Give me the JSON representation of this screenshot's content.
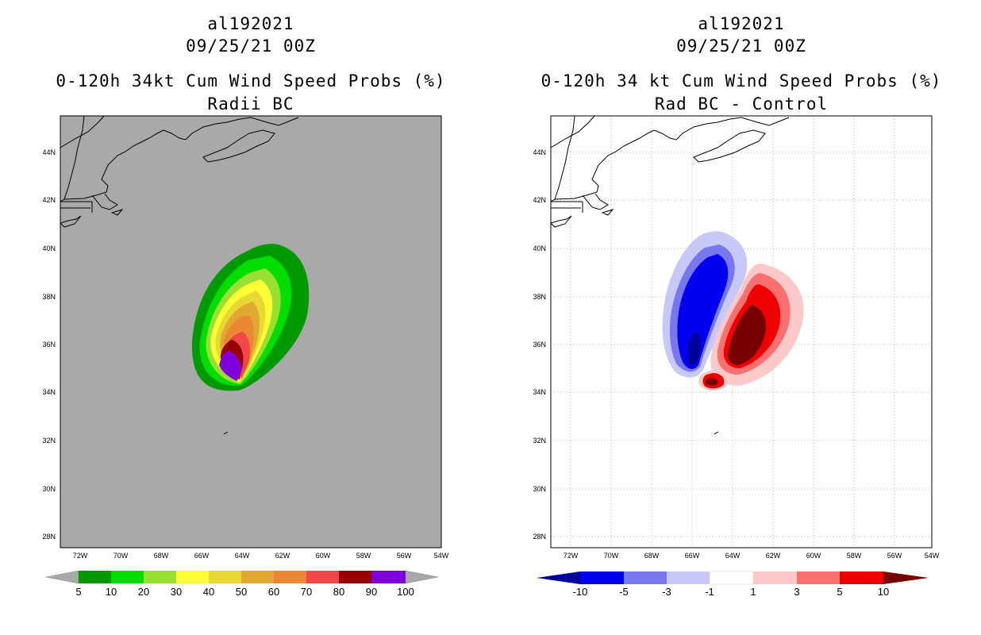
{
  "left": {
    "id": "al192021",
    "datetime": "09/25/21 00Z",
    "title": "0-120h 34kt Cum Wind Speed Probs (%)",
    "subtitle": "Radii BC",
    "background_color": "#a9a9a9",
    "colorbar": {
      "labels": [
        "5",
        "10",
        "20",
        "30",
        "40",
        "50",
        "60",
        "70",
        "80",
        "90",
        "100"
      ],
      "colors": [
        "#009900",
        "#00dd00",
        "#99e033",
        "#ffff33",
        "#e8d833",
        "#e0a833",
        "#ec8833",
        "#f04848",
        "#990000",
        "#8000dd"
      ]
    }
  },
  "right": {
    "id": "al192021",
    "datetime": "09/25/21 00Z",
    "title": "0-120h 34 kt Cum Wind Speed Probs (%)",
    "subtitle": "Rad BC - Control",
    "colorbar": {
      "labels": [
        "-10",
        "-5",
        "-3",
        "-1",
        "1",
        "3",
        "5",
        "10"
      ],
      "colors": [
        "#000099",
        "#0000ee",
        "#7777f0",
        "#c8c8f8",
        "#ffffff",
        "#fcc8c8",
        "#f87070",
        "#ee0000",
        "#770000"
      ]
    }
  },
  "axes": {
    "lat_labels": [
      "44N",
      "42N",
      "40N",
      "38N",
      "36N",
      "34N",
      "32N",
      "30N",
      "28N"
    ],
    "lon_labels": [
      "72W",
      "70W",
      "68W",
      "66W",
      "64W",
      "62W",
      "60W",
      "58W",
      "56W",
      "54W"
    ]
  }
}
